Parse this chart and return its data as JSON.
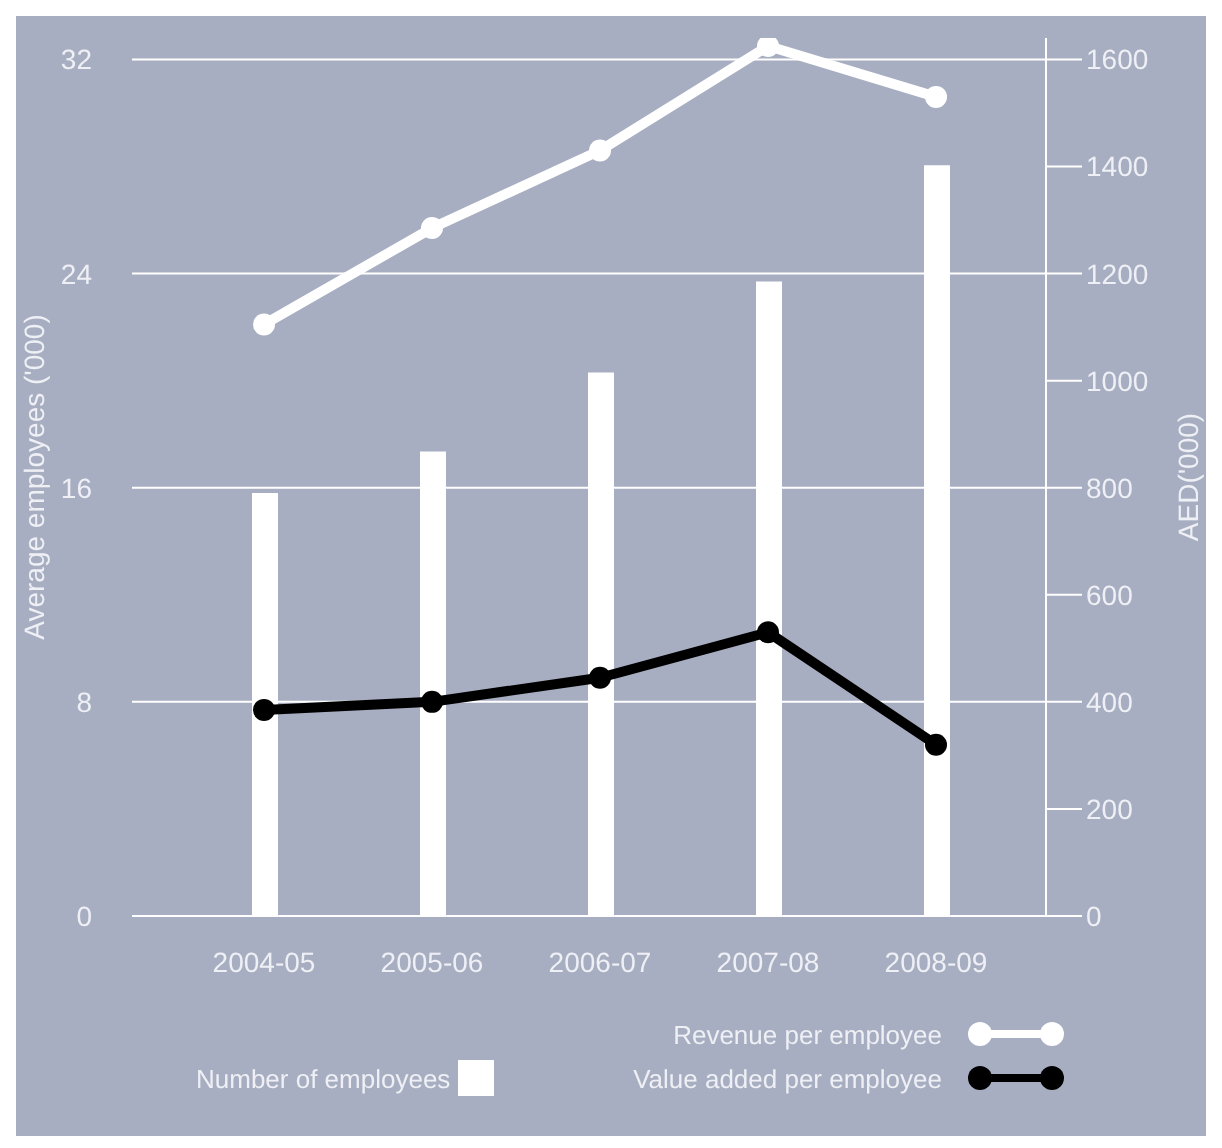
{
  "chart_data": {
    "type": "bar",
    "categories": [
      "2004-05",
      "2005-06",
      "2006-07",
      "2007-08",
      "2008-09"
    ],
    "series": [
      {
        "name": "Number of employees",
        "color": "#ffffff",
        "values": [
          15.8,
          17.35,
          20.3,
          23.7,
          28.05
        ]
      },
      {
        "name": "Revenue per employee",
        "type": "line",
        "axis": "y2",
        "color": "#ffffff",
        "values": [
          1105,
          1285,
          1430,
          1625,
          1530
        ]
      },
      {
        "name": "Value added per employee",
        "type": "line",
        "axis": "y2",
        "color": "#000000",
        "values": [
          385,
          400,
          445,
          530,
          320
        ]
      }
    ],
    "ylabel": "Average employees ('000)",
    "y2label": "AED('000)",
    "ylim": [
      0,
      32.8
    ],
    "yticks": [
      0,
      8,
      16,
      24,
      32
    ],
    "y2lim": [
      0,
      1640
    ],
    "y2ticks": [
      0,
      200,
      400,
      600,
      800,
      1000,
      1200,
      1400,
      1600
    ],
    "grid": "y",
    "legend": "bottom right",
    "marker": "circle",
    "line_style": "solid"
  }
}
